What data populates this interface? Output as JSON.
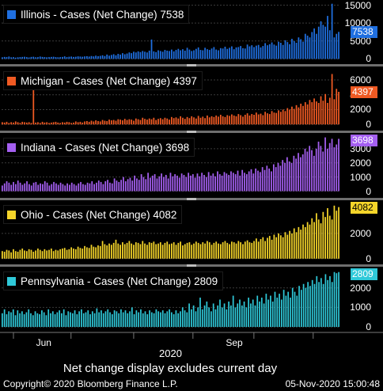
{
  "chart_data": [
    {
      "type": "bar",
      "title": "Illinois - Cases (Net Change) 7538",
      "series_name": "Illinois",
      "color": "#1f6fe0",
      "last_value_label": "7538",
      "last_value": 7538,
      "ylim": [
        -800,
        16000
      ],
      "yticks": [
        0,
        5000,
        10000,
        15000
      ],
      "values": [
        450,
        550,
        500,
        650,
        450,
        500,
        350,
        450,
        500,
        550,
        600,
        500,
        400,
        550,
        600,
        450,
        500,
        650,
        550,
        500,
        450,
        500,
        550,
        600,
        500,
        450,
        500,
        550,
        700,
        500,
        600,
        650,
        550,
        600,
        700,
        650,
        600,
        700,
        750,
        650,
        800,
        700,
        900,
        750,
        850,
        1000,
        800,
        1200,
        900,
        1100,
        1300,
        1000,
        1400,
        1200,
        1600,
        1300,
        1500,
        1800,
        1600,
        2000,
        1800,
        2100,
        1900,
        2200,
        2000,
        1800,
        2300,
        5400,
        2100,
        1900,
        2400,
        2200,
        2000,
        2500,
        2300,
        2200,
        2600,
        2100,
        2500,
        2800,
        2400,
        2700,
        2300,
        3100,
        2600,
        2200,
        2400,
        2800,
        3200,
        2500,
        2400,
        3100,
        2700,
        2500,
        2900,
        3300,
        2600,
        2400,
        3000,
        2900,
        3400,
        2800,
        3100,
        3500,
        2700,
        3200,
        3300,
        3600,
        3000,
        2900,
        4000,
        3500,
        3800,
        3300,
        3700,
        3900,
        3200,
        3600,
        4400,
        3800,
        4100,
        4600,
        4000,
        3700,
        4800,
        4500,
        3900,
        5200,
        4700,
        4100,
        5600,
        5000,
        4500,
        6000,
        5500,
        4800,
        7000,
        6500,
        6000,
        7500,
        8500,
        7000,
        9000,
        10500,
        9500,
        9000,
        12000,
        8000,
        15400,
        6000,
        7000,
        7538
      ]
    },
    {
      "type": "bar",
      "title": "Michigan - Cases (Net Change) 4397",
      "series_name": "Michigan",
      "color": "#f05a23",
      "last_value_label": "4397",
      "last_value": 4397,
      "ylim": [
        -300,
        7600
      ],
      "yticks": [
        0,
        2000,
        4000,
        6000
      ],
      "values": [
        300,
        250,
        350,
        200,
        300,
        250,
        400,
        300,
        200,
        350,
        300,
        250,
        300,
        200,
        4700,
        250,
        300,
        200,
        350,
        250,
        300,
        200,
        250,
        300,
        350,
        250,
        200,
        300,
        250,
        350,
        300,
        200,
        250,
        400,
        300,
        350,
        250,
        400,
        450,
        350,
        500,
        400,
        550,
        450,
        400,
        600,
        500,
        450,
        650,
        550,
        600,
        500,
        700,
        650,
        550,
        750,
        600,
        700,
        650,
        500,
        800,
        700,
        600,
        900,
        750,
        650,
        800,
        700,
        900,
        600,
        750,
        850,
        700,
        900,
        800,
        650,
        1000,
        850,
        950,
        800,
        1100,
        900,
        750,
        1000,
        850,
        1100,
        950,
        800,
        1150,
        900,
        1050,
        850,
        1200,
        950,
        1100,
        1000,
        1200,
        1050,
        1300,
        1100,
        1000,
        1250,
        1150,
        1350,
        1200,
        1100,
        1400,
        1250,
        1050,
        1300,
        1500,
        1200,
        1400,
        1300,
        1600,
        1350,
        1450,
        1250,
        1700,
        1500,
        1400,
        1800,
        1600,
        1550,
        1900,
        1700,
        2000,
        1800,
        2200,
        2000,
        2400,
        2100,
        2600,
        2300,
        2800,
        2500,
        3000,
        2700,
        3300,
        3000,
        3500,
        3100,
        2900,
        3800,
        3200,
        4100,
        2900,
        3600,
        6800,
        3400,
        4800,
        4397
      ]
    },
    {
      "type": "bar",
      "title": "Indiana - Cases (Net Change) 3698",
      "series_name": "Indiana",
      "color": "#a45ff0",
      "last_value_label": "3698",
      "last_value": 3698,
      "ylim": [
        -250,
        4000
      ],
      "yticks": [
        0,
        1000,
        2000,
        3000
      ],
      "values": [
        400,
        550,
        700,
        600,
        450,
        650,
        500,
        750,
        600,
        450,
        550,
        700,
        500,
        400,
        600,
        650,
        450,
        550,
        500,
        700,
        600,
        400,
        500,
        650,
        550,
        450,
        600,
        500,
        400,
        550,
        450,
        600,
        500,
        400,
        550,
        650,
        500,
        450,
        600,
        550,
        700,
        500,
        600,
        750,
        650,
        500,
        700,
        800,
        600,
        550,
        900,
        750,
        650,
        800,
        1000,
        700,
        850,
        950,
        750,
        1100,
        900,
        800,
        1200,
        1000,
        850,
        1300,
        950,
        1100,
        1200,
        900,
        1050,
        1250,
        1000,
        1150,
        900,
        1300,
        1050,
        1200,
        1100,
        950,
        1250,
        1150,
        1000,
        1300,
        1100,
        1200,
        950,
        1250,
        1050,
        1300,
        1150,
        1000,
        1350,
        1100,
        1250,
        1050,
        1400,
        1200,
        1100,
        1350,
        1250,
        1150,
        1400,
        1300,
        1200,
        1450,
        1100,
        1500,
        1300,
        1200,
        1400,
        1550,
        1250,
        1600,
        1450,
        1350,
        1700,
        1500,
        1800,
        1600,
        1400,
        1900,
        1700,
        2000,
        1800,
        2200,
        2000,
        2400,
        2100,
        2000,
        2500,
        2300,
        2700,
        2400,
        2600,
        3000,
        2800,
        3200,
        2900,
        2500,
        3000,
        3500,
        3200,
        2800,
        3800,
        3000,
        3400,
        3700,
        3100,
        3300,
        3698
      ]
    },
    {
      "type": "bar",
      "title": "Ohio - Cases (Net Change) 4082",
      "series_name": "Ohio",
      "color": "#f5d52a",
      "last_value_label": "4082",
      "last_value": 4082,
      "ylim": [
        -200,
        4500
      ],
      "yticks": [
        0,
        2000
      ],
      "values": [
        600,
        550,
        700,
        650,
        500,
        750,
        600,
        550,
        700,
        800,
        650,
        600,
        750,
        700,
        550,
        650,
        800,
        700,
        600,
        750,
        650,
        700,
        800,
        600,
        700,
        650,
        750,
        800,
        850,
        700,
        750,
        900,
        800,
        750,
        950,
        850,
        800,
        1000,
        900,
        850,
        1100,
        950,
        900,
        1050,
        1000,
        1400,
        1150,
        1050,
        1200,
        1100,
        1250,
        1500,
        1200,
        1100,
        1300,
        1150,
        1250,
        1400,
        1200,
        1100,
        1300,
        1250,
        1150,
        1400,
        1200,
        1100,
        1300,
        1250,
        1350,
        1150,
        1200,
        1300,
        1100,
        1250,
        1350,
        1150,
        1200,
        1300,
        1100,
        1250,
        1350,
        1050,
        1150,
        1250,
        1300,
        1100,
        1200,
        1350,
        1250,
        1150,
        1300,
        1200,
        1400,
        1300,
        1100,
        1250,
        1350,
        1200,
        1150,
        1300,
        1400,
        1250,
        1150,
        1350,
        1300,
        1200,
        1400,
        1300,
        1150,
        1350,
        1450,
        1300,
        1250,
        1400,
        1600,
        1350,
        1550,
        1700,
        1400,
        1650,
        1800,
        1500,
        1900,
        1700,
        2000,
        1850,
        1700,
        2100,
        1900,
        2200,
        2000,
        2400,
        2100,
        2500,
        2300,
        2700,
        2500,
        2900,
        2700,
        3200,
        2900,
        3600,
        3100,
        2800,
        3700,
        3300,
        4000,
        3400,
        3100,
        4200,
        3800,
        4082
      ]
    },
    {
      "type": "bar",
      "title": "Pennsylvania - Cases (Net Change) 2809",
      "series_name": "Pennsylvania",
      "color": "#2fc9d9",
      "last_value_label": "2809",
      "last_value": 2809,
      "ylim": [
        -200,
        3000
      ],
      "yticks": [
        0,
        1000,
        2000
      ],
      "values": [
        700,
        900,
        650,
        800,
        750,
        900,
        600,
        850,
        700,
        800,
        650,
        750,
        900,
        700,
        600,
        800,
        700,
        650,
        850,
        750,
        600,
        900,
        700,
        800,
        650,
        750,
        850,
        700,
        900,
        600,
        800,
        750,
        700,
        850,
        650,
        800,
        900,
        700,
        750,
        850,
        650,
        800,
        700,
        950,
        750,
        850,
        700,
        800,
        900,
        750,
        650,
        850,
        800,
        700,
        900,
        750,
        850,
        700,
        800,
        1000,
        650,
        850,
        750,
        900,
        700,
        800,
        650,
        850,
        750,
        700,
        900,
        800,
        750,
        850,
        700,
        800,
        900,
        750,
        650,
        850,
        700,
        800,
        1000,
        850,
        750,
        1200,
        900,
        1100,
        800,
        1000,
        1500,
        900,
        1100,
        1300,
        1000,
        800,
        1200,
        900,
        1100,
        1400,
        1000,
        1200,
        900,
        1300,
        1100,
        1600,
        1000,
        1200,
        1400,
        1100,
        1300,
        1000,
        1500,
        1200,
        1400,
        1100,
        1600,
        1300,
        1500,
        1200,
        1700,
        1400,
        1600,
        1300,
        1800,
        1500,
        1700,
        1400,
        1900,
        1600,
        1800,
        1500,
        2000,
        1800,
        1600,
        2100,
        1900,
        2200,
        2000,
        2300,
        2100,
        2400,
        2200,
        2600,
        2300,
        2500,
        2200,
        2700,
        2400,
        2600,
        2300,
        2809,
        2750,
        2809
      ]
    }
  ],
  "x_axis": {
    "tick_labels": [
      {
        "label": "Jun",
        "frac": 0.13
      },
      {
        "label": "Sep",
        "frac": 0.69
      }
    ],
    "month_ticks": [
      0.035,
      0.205,
      0.39,
      0.565,
      0.745,
      0.92
    ],
    "year_label": "2020"
  },
  "footnote": "Net change display excludes current day",
  "copyright": "Copyright© 2020 Bloomberg Finance L.P.",
  "timestamp": "05-Nov-2020 15:00:48"
}
